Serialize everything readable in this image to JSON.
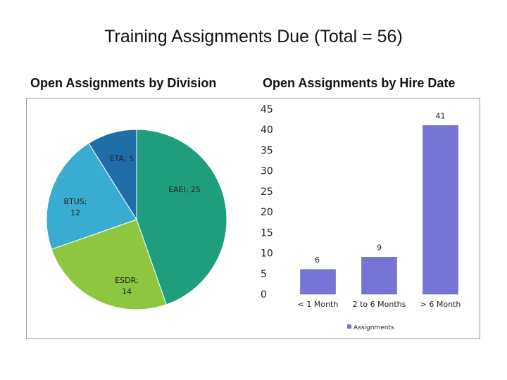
{
  "title": "Training Assignments Due (Total = 56)",
  "chart_data": [
    {
      "type": "pie",
      "title": "Open Assignments by Division",
      "slices": [
        {
          "label": "EAEI",
          "value": 25,
          "display": "EAEI; 25",
          "color": "#1f9e7e"
        },
        {
          "label": "ESDR",
          "value": 14,
          "display": "ESDR; 14",
          "color": "#8dc63f"
        },
        {
          "label": "BTUS",
          "value": 12,
          "display": "BTUS; 12",
          "color": "#39acd2"
        },
        {
          "label": "ETA",
          "value": 5,
          "display": "ETA; 5",
          "color": "#1f6ea8"
        }
      ]
    },
    {
      "type": "bar",
      "title": "Open Assignments by Hire Date",
      "categories": [
        "< 1 Month",
        "2 to 6 Months",
        "> 6 Month"
      ],
      "series": [
        {
          "name": "Assignments",
          "values": [
            6,
            9,
            41
          ],
          "color": "#7674d4"
        }
      ],
      "ylim": [
        0,
        45
      ],
      "yticks": [
        "0",
        "5",
        "10",
        "15",
        "20",
        "25",
        "30",
        "35",
        "40",
        "45"
      ],
      "legend": "bottom"
    }
  ]
}
